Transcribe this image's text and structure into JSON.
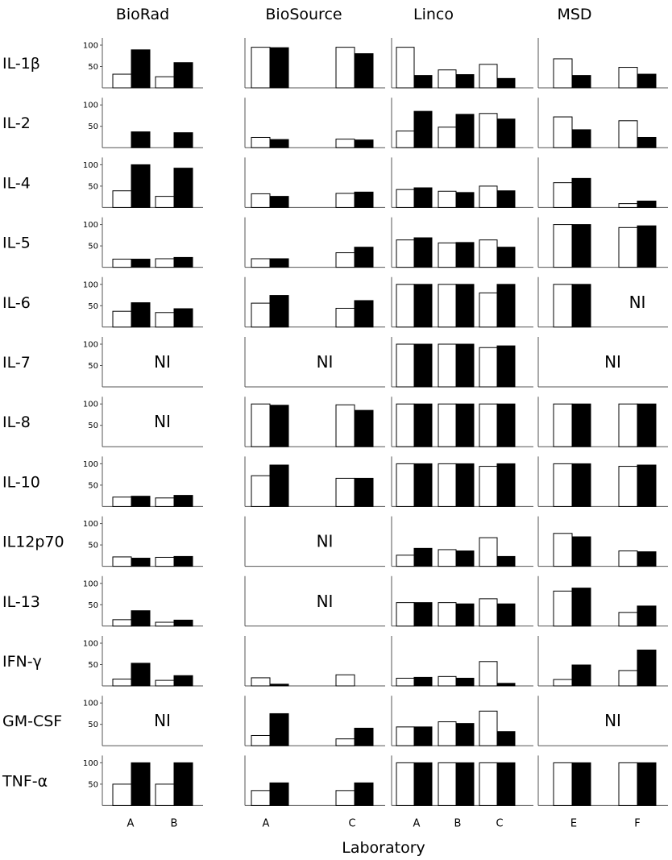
{
  "chart_data": {
    "type": "bar",
    "xlabel": "Laboratory",
    "ytick_labels": [
      "50",
      "100"
    ],
    "ylim": [
      0,
      100
    ],
    "not_included_label": "NI",
    "series_colors": {
      "open": "#ffffff",
      "filled": "#000000"
    },
    "columns": [
      {
        "title": "BioRad",
        "labs": [
          "A",
          "B"
        ]
      },
      {
        "title": "BioSource",
        "labs": [
          "A",
          "C"
        ]
      },
      {
        "title": "Linco",
        "labs": [
          "A",
          "B",
          "C"
        ]
      },
      {
        "title": "MSD",
        "labs": [
          "E",
          "F"
        ]
      }
    ],
    "rows": [
      {
        "label": "IL-1β",
        "cells": [
          [
            [
              32,
              89
            ],
            [
              26,
              59
            ]
          ],
          [
            [
              95,
              94
            ],
            [
              95,
              80
            ]
          ],
          [
            [
              95,
              29
            ],
            [
              42,
              31
            ],
            [
              55,
              22
            ]
          ],
          [
            [
              68,
              29
            ],
            [
              48,
              32
            ]
          ]
        ]
      },
      {
        "label": "IL-2",
        "cells": [
          [
            [
              0,
              37
            ],
            [
              0,
              35
            ]
          ],
          [
            [
              24,
              19
            ],
            [
              20,
              18
            ]
          ],
          [
            [
              39,
              85
            ],
            [
              48,
              78
            ],
            [
              80,
              67
            ]
          ],
          [
            [
              72,
              42
            ],
            [
              63,
              24
            ]
          ]
        ]
      },
      {
        "label": "IL-4",
        "cells": [
          [
            [
              39,
              100
            ],
            [
              26,
              92
            ]
          ],
          [
            [
              32,
              26
            ],
            [
              33,
              36
            ]
          ],
          [
            [
              42,
              46
            ],
            [
              38,
              35
            ],
            [
              50,
              39
            ]
          ],
          [
            [
              58,
              68
            ],
            [
              9,
              15
            ]
          ]
        ]
      },
      {
        "label": "IL-5",
        "cells": [
          [
            [
              19,
              19
            ],
            [
              20,
              23
            ]
          ],
          [
            [
              20,
              20
            ],
            [
              34,
              47
            ]
          ],
          [
            [
              64,
              69
            ],
            [
              57,
              58
            ],
            [
              64,
              47
            ]
          ],
          [
            [
              100,
              100
            ],
            [
              93,
              97
            ]
          ]
        ]
      },
      {
        "label": "IL-6",
        "cells": [
          [
            [
              37,
              57
            ],
            [
              34,
              43
            ]
          ],
          [
            [
              56,
              74
            ],
            [
              44,
              62
            ]
          ],
          [
            [
              100,
              100
            ],
            [
              100,
              100
            ],
            [
              80,
              100
            ]
          ],
          [
            [
              100,
              100
            ],
            null
          ]
        ]
      },
      {
        "label": "IL-7",
        "cells": [
          null,
          null,
          [
            [
              100,
              100
            ],
            [
              100,
              100
            ],
            [
              92,
              96
            ]
          ],
          null
        ]
      },
      {
        "label": "IL-8",
        "cells": [
          null,
          [
            [
              100,
              97
            ],
            [
              98,
              85
            ]
          ],
          [
            [
              100,
              100
            ],
            [
              100,
              100
            ],
            [
              100,
              100
            ]
          ],
          [
            [
              100,
              100
            ],
            [
              100,
              100
            ]
          ]
        ]
      },
      {
        "label": "IL-10",
        "cells": [
          [
            [
              22,
              24
            ],
            [
              20,
              26
            ]
          ],
          [
            [
              72,
              97
            ],
            [
              66,
              66
            ]
          ],
          [
            [
              100,
              100
            ],
            [
              100,
              100
            ],
            [
              94,
              100
            ]
          ],
          [
            [
              100,
              100
            ],
            [
              94,
              97
            ]
          ]
        ]
      },
      {
        "label": "IL12p70",
        "cells": [
          [
            [
              22,
              19
            ],
            [
              21,
              23
            ]
          ],
          null,
          [
            [
              26,
              42
            ],
            [
              39,
              36
            ],
            [
              67,
              23
            ]
          ],
          [
            [
              77,
              69
            ],
            [
              36,
              34
            ]
          ]
        ]
      },
      {
        "label": "IL-13",
        "cells": [
          [
            [
              15,
              36
            ],
            [
              9,
              14
            ]
          ],
          null,
          [
            [
              55,
              55
            ],
            [
              55,
              52
            ],
            [
              64,
              52
            ]
          ],
          [
            [
              82,
              89
            ],
            [
              32,
              47
            ]
          ]
        ]
      },
      {
        "label": "IFN-γ",
        "cells": [
          [
            [
              16,
              53
            ],
            [
              13,
              24
            ]
          ],
          [
            [
              19,
              4
            ],
            [
              26,
              0
            ]
          ],
          [
            [
              18,
              20
            ],
            [
              22,
              18
            ],
            [
              57,
              6
            ]
          ],
          [
            [
              15,
              49
            ],
            [
              36,
              84
            ]
          ]
        ]
      },
      {
        "label": "GM-CSF",
        "cells": [
          null,
          [
            [
              24,
              75
            ],
            [
              16,
              41
            ]
          ],
          [
            [
              44,
              44
            ],
            [
              56,
              52
            ],
            [
              81,
              33
            ]
          ],
          null
        ]
      },
      {
        "label": "TNF-α",
        "cells": [
          [
            [
              50,
              100
            ],
            [
              50,
              100
            ]
          ],
          [
            [
              35,
              53
            ],
            [
              35,
              53
            ]
          ],
          [
            [
              100,
              100
            ],
            [
              100,
              100
            ],
            [
              100,
              100
            ]
          ],
          [
            [
              100,
              100
            ],
            [
              100,
              100
            ]
          ]
        ]
      }
    ]
  }
}
